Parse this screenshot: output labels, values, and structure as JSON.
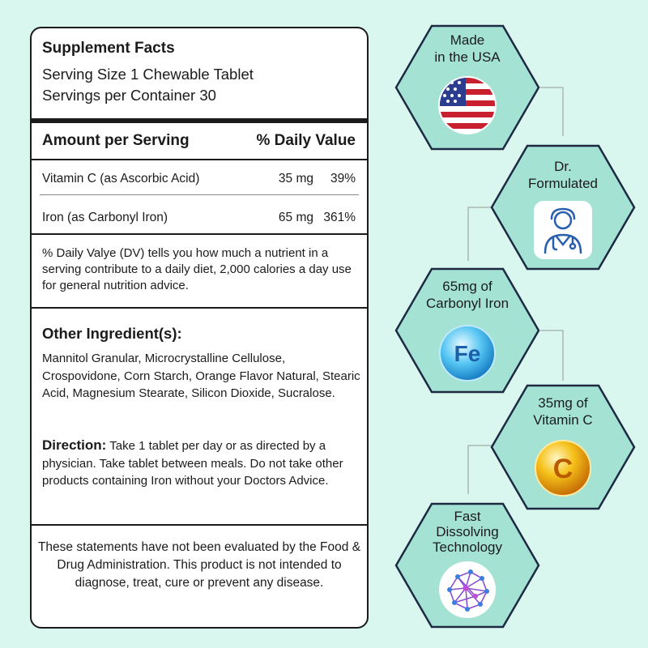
{
  "facts": {
    "title": "Supplement Facts",
    "serving_size": "Serving Size 1 Chewable Tablet",
    "servings_per_container": "Servings per Container 30",
    "amount_header": "Amount per Serving",
    "dv_header": "% Daily Value",
    "nutrients": [
      {
        "name": "Vitamin C (as Ascorbic Acid)",
        "amount": "35 mg",
        "dv": "39%"
      },
      {
        "name": "Iron (as Carbonyl Iron)",
        "amount": "65 mg",
        "dv": "361%"
      }
    ],
    "dv_note": "% Daily Valye (DV) tells you how much a nutrient in a serving contribute to a daily diet, 2,000 calories a day use for general nutrition advice.",
    "other_ingredients_title": "Other Ingredient(s):",
    "other_ingredients": "Mannitol Granular, Microcrystalline Cellulose, Crospovidone, Corn Starch, Orange Flavor Natural, Stearic Acid, Magnesium Stearate, Silicon Dioxide, Sucralose.",
    "direction_label": "Direction:",
    "direction_text": " Take 1 tablet per day or as directed by a physician. Take tablet between meals. Do not take other products containing Iron without your Doctors Advice.",
    "disclaimer": "These statements have not been evaluated by the Food & Drug Administration. This product is not intended to diagnose, treat, cure or prevent any disease."
  },
  "badges": {
    "usa": {
      "line1": "Made",
      "line2": "in the USA",
      "icon": "us-flag-icon"
    },
    "doctor": {
      "line1": "Dr.",
      "line2": "Formulated",
      "icon": "doctor-icon"
    },
    "iron": {
      "line1": "65mg of",
      "line2": "Carbonyl Iron",
      "icon": "fe-orb-icon",
      "icon_text": "Fe"
    },
    "vitc": {
      "line1": "35mg of",
      "line2": "Vitamin C",
      "icon": "vitamin-c-orb-icon",
      "icon_text": "C"
    },
    "fast": {
      "line1": "Fast",
      "line2": "Dissolving",
      "line3": "Technology",
      "icon": "network-brain-icon"
    }
  },
  "colors": {
    "background": "#d9f7ee",
    "hex_fill": "#a4e3d4",
    "hex_outline": "#1e2a44",
    "card_border": "#1b1b1b"
  }
}
